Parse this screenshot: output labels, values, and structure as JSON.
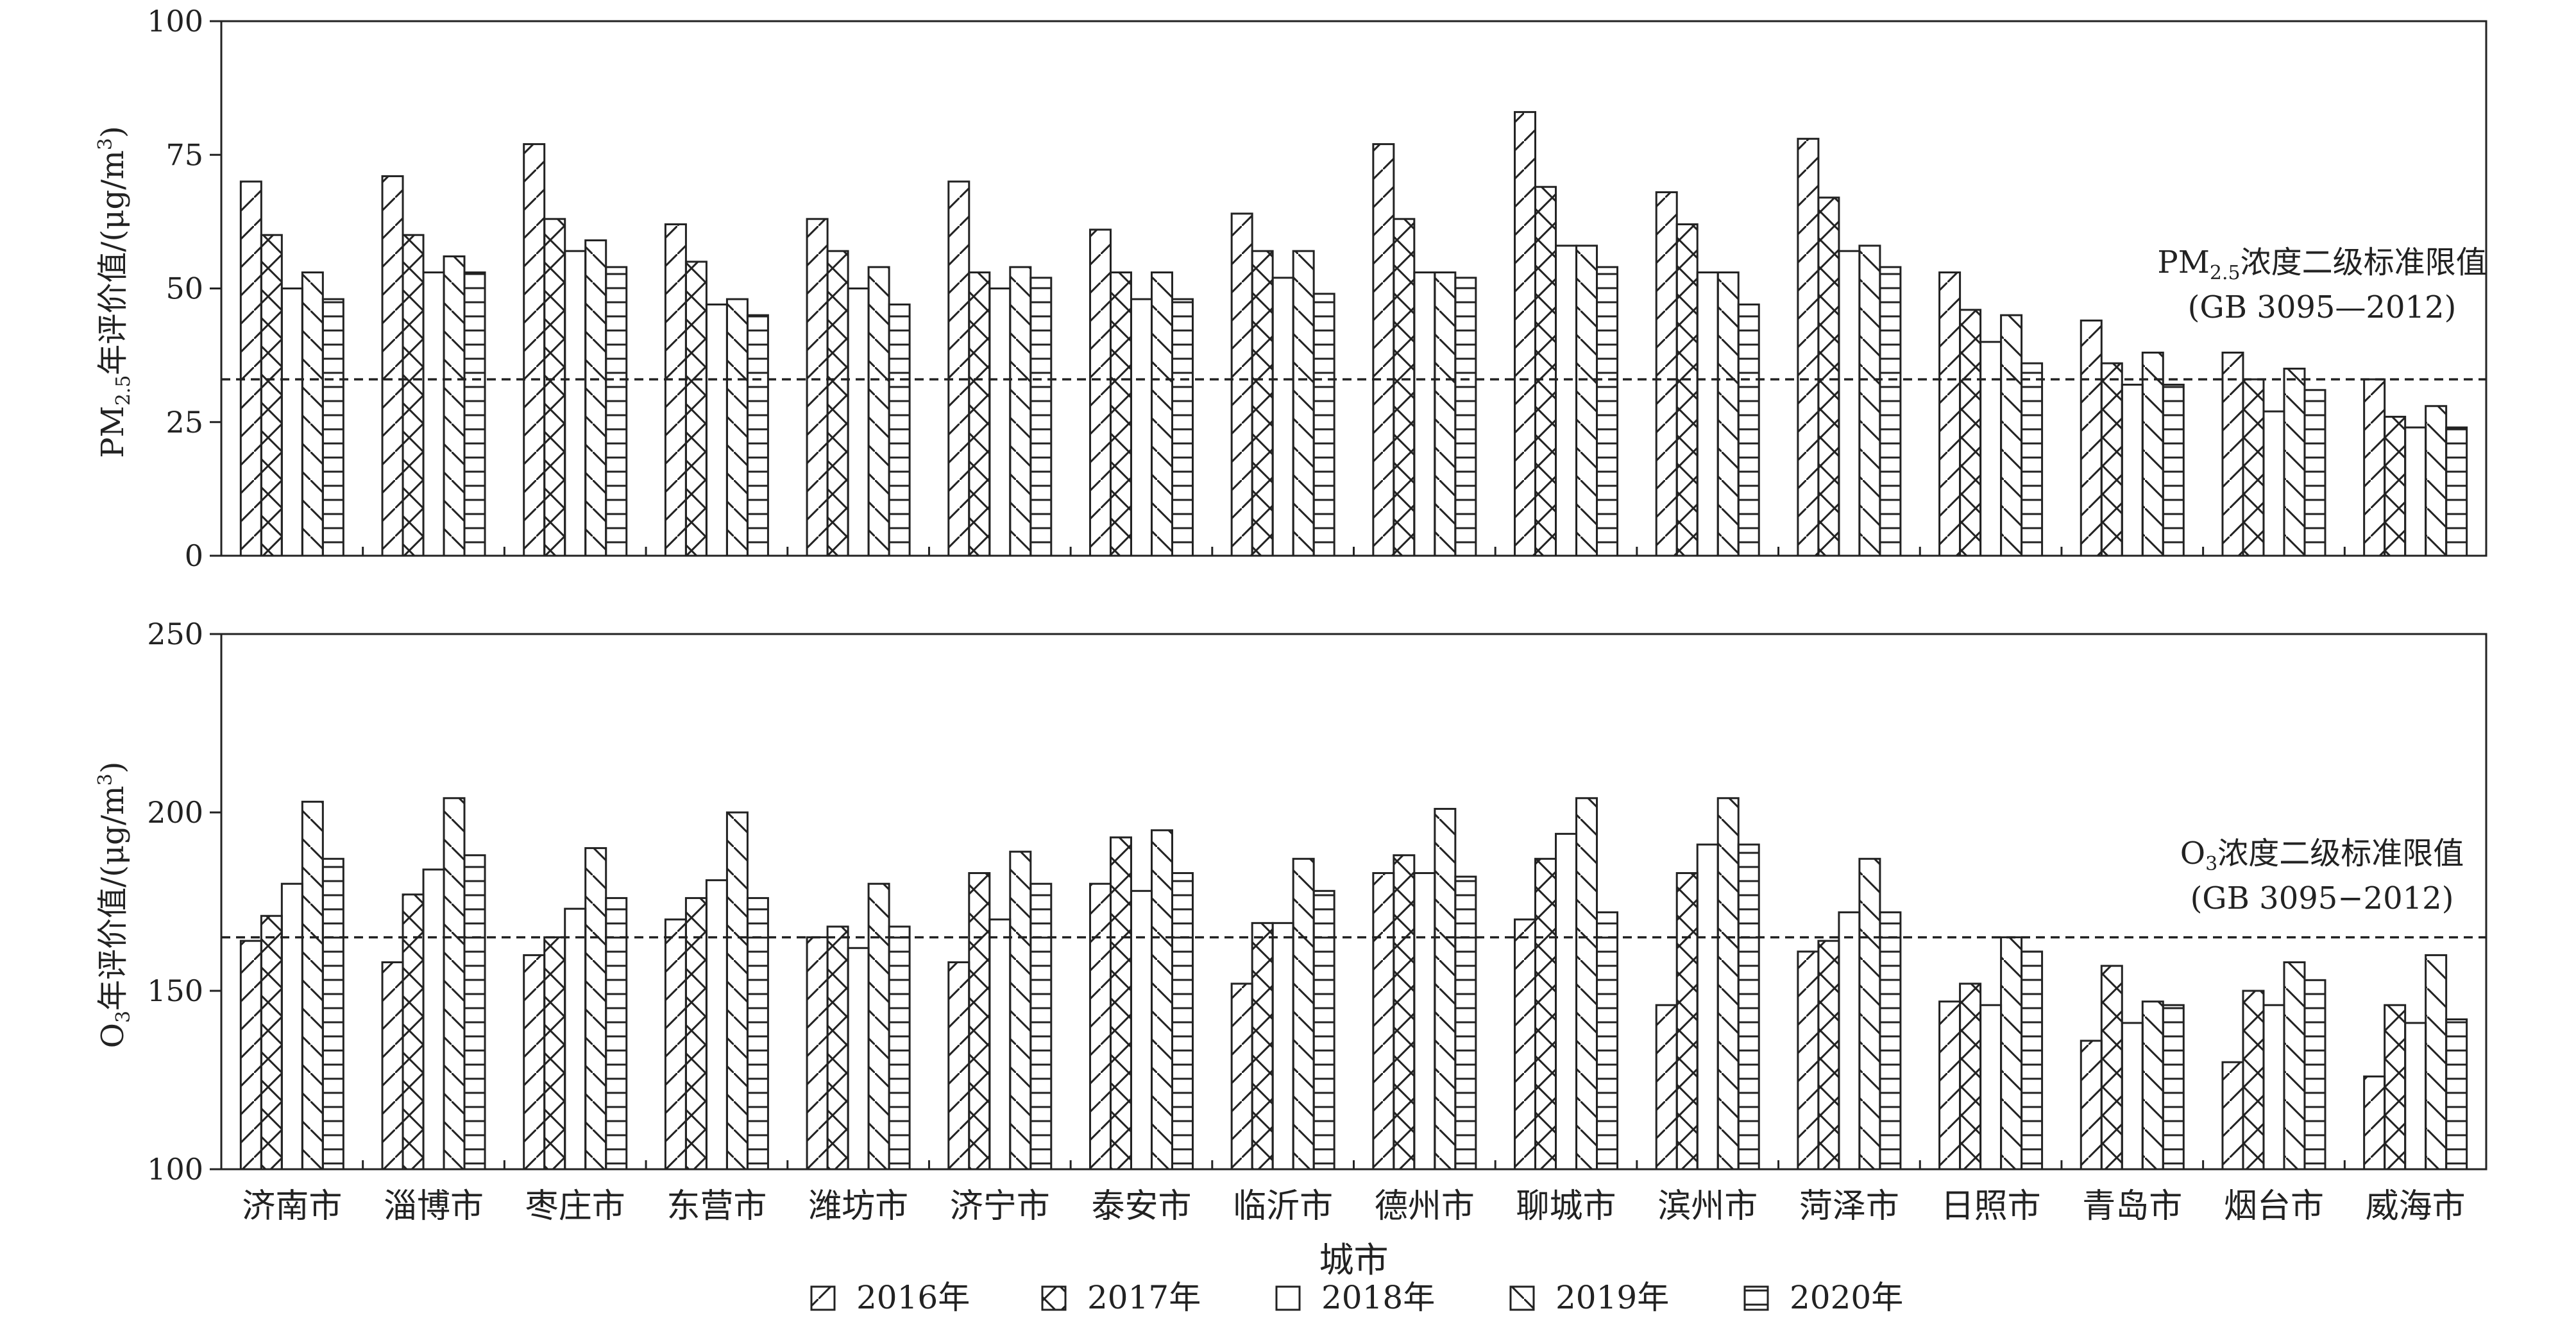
{
  "chart_data": [
    {
      "type": "bar",
      "categories": [
        "济南市",
        "淄博市",
        "枣庄市",
        "东营市",
        "潍坊市",
        "济宁市",
        "泰安市",
        "临沂市",
        "德州市",
        "聊城市",
        "滨州市",
        "菏泽市",
        "日照市",
        "青岛市",
        "烟台市",
        "威海市"
      ],
      "series": [
        {
          "name": "2016年",
          "values": [
            70,
            71,
            77,
            62,
            63,
            70,
            61,
            64,
            77,
            83,
            68,
            78,
            53,
            44,
            38,
            33
          ]
        },
        {
          "name": "2017年",
          "values": [
            60,
            60,
            63,
            55,
            57,
            53,
            53,
            57,
            63,
            69,
            62,
            67,
            46,
            36,
            33,
            26
          ]
        },
        {
          "name": "2018年",
          "values": [
            50,
            53,
            57,
            47,
            50,
            50,
            48,
            52,
            53,
            58,
            53,
            57,
            40,
            32,
            27,
            24
          ]
        },
        {
          "name": "2019年",
          "values": [
            53,
            56,
            59,
            48,
            54,
            54,
            53,
            57,
            53,
            58,
            53,
            58,
            45,
            38,
            35,
            28
          ]
        },
        {
          "name": "2020年",
          "values": [
            48,
            53,
            54,
            45,
            47,
            52,
            48,
            49,
            52,
            54,
            47,
            54,
            36,
            32,
            31,
            24
          ]
        }
      ],
      "ylabel_prefix": "PM",
      "ylabel_sub": "2.5",
      "ylabel_suffix": "年评价值/(μg/m",
      "ylabel_sup": "3",
      "ylabel_end": ")",
      "ylim": [
        0,
        100
      ],
      "yticks": [
        0,
        25,
        50,
        75,
        100
      ],
      "reference_line": {
        "value": 33,
        "label_prefix": "PM",
        "label_sub": "2.5",
        "label_suffix": "浓度二级标准限值",
        "label_line2": "(GB 3095—2012)"
      }
    },
    {
      "type": "bar",
      "categories": [
        "济南市",
        "淄博市",
        "枣庄市",
        "东营市",
        "潍坊市",
        "济宁市",
        "泰安市",
        "临沂市",
        "德州市",
        "聊城市",
        "滨州市",
        "菏泽市",
        "日照市",
        "青岛市",
        "烟台市",
        "威海市"
      ],
      "series": [
        {
          "name": "2016年",
          "values": [
            164,
            158,
            160,
            170,
            165,
            158,
            180,
            152,
            183,
            170,
            146,
            161,
            147,
            136,
            130,
            126
          ]
        },
        {
          "name": "2017年",
          "values": [
            171,
            177,
            165,
            176,
            168,
            183,
            193,
            169,
            188,
            187,
            183,
            164,
            152,
            157,
            150,
            146
          ]
        },
        {
          "name": "2018年",
          "values": [
            180,
            184,
            173,
            181,
            162,
            170,
            178,
            169,
            183,
            194,
            191,
            172,
            146,
            141,
            146,
            141
          ]
        },
        {
          "name": "2019年",
          "values": [
            203,
            204,
            190,
            200,
            180,
            189,
            195,
            187,
            201,
            204,
            204,
            187,
            165,
            147,
            158,
            160
          ]
        },
        {
          "name": "2020年",
          "values": [
            187,
            188,
            176,
            176,
            168,
            180,
            183,
            178,
            182,
            172,
            191,
            172,
            161,
            146,
            153,
            142
          ]
        }
      ],
      "ylabel_prefix": "O",
      "ylabel_sub": "3",
      "ylabel_suffix": "年评价值/(μg/m",
      "ylabel_sup": "3",
      "ylabel_end": ")",
      "ylim": [
        100,
        250
      ],
      "yticks": [
        100,
        150,
        200,
        250
      ],
      "reference_line": {
        "value": 165,
        "label_prefix": "O",
        "label_sub": "3",
        "label_suffix": "浓度二级标准限值",
        "label_line2": "(GB 3095−2012)"
      }
    }
  ],
  "xlabel": "城市",
  "legend": {
    "placement": "bottom",
    "items": [
      {
        "label": "2016年",
        "pattern": "diagonal-forward"
      },
      {
        "label": "2017年",
        "pattern": "cross-hatch"
      },
      {
        "label": "2018年",
        "pattern": "blank"
      },
      {
        "label": "2019年",
        "pattern": "diagonal-backward"
      },
      {
        "label": "2020年",
        "pattern": "horizontal-lines"
      }
    ]
  },
  "colors": {
    "stroke": "#222222",
    "background": "#ffffff"
  }
}
